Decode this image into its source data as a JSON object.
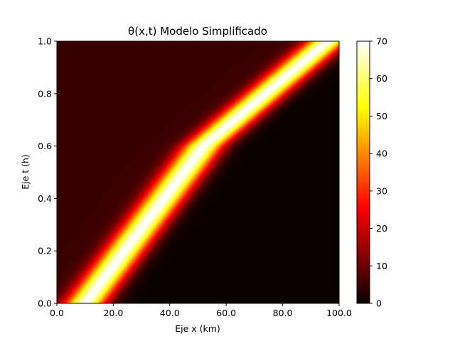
{
  "chart_data": {
    "type": "heatmap",
    "title": "θ(x,t) Modelo Simplificado",
    "xlabel": "Eje x (km)",
    "ylabel": "Eje t (h)",
    "xlim": [
      0,
      100
    ],
    "ylim": [
      0,
      1
    ],
    "x_ticks": [
      0,
      20,
      40,
      60,
      80,
      100
    ],
    "x_tick_labels": [
      "0.0",
      "20.0",
      "40.0",
      "60.0",
      "80.0",
      "100.0"
    ],
    "y_ticks": [
      0,
      0.2,
      0.4,
      0.6,
      0.8,
      1.0
    ],
    "y_tick_labels": [
      "0.0",
      "0.2",
      "0.4",
      "0.6",
      "0.8",
      "1.0"
    ],
    "colormap": "hot",
    "colorbar": {
      "range": [
        0,
        70
      ],
      "ticks": [
        0,
        10,
        20,
        30,
        40,
        50,
        60,
        70
      ],
      "tick_labels": [
        "0",
        "10",
        "20",
        "30",
        "40",
        "50",
        "60",
        "70"
      ]
    },
    "field": {
      "description_values": "upper-left region ≈ 5, lower-right region ≈ 0, narrow peak band ≈ 70",
      "background_upper_left": 5,
      "background_lower_right": 0,
      "peak_value": 70,
      "band_halfwidth_km": 5,
      "band_center_path": [
        {
          "t": 0.0,
          "x": 10
        },
        {
          "t": 0.6,
          "x": 52
        },
        {
          "t": 1.0,
          "x": 96
        }
      ]
    },
    "grid": false,
    "legend": "colorbar-right"
  }
}
